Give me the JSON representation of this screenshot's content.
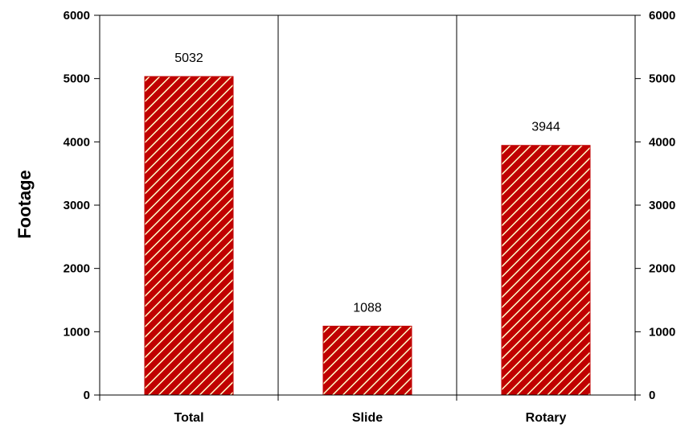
{
  "chart_data": {
    "type": "bar",
    "categories": [
      "Total",
      "Slide",
      "Rotary"
    ],
    "values": [
      5032,
      1088,
      3944
    ],
    "data_labels": [
      "5032",
      "1088",
      "3944"
    ],
    "ylabel": "Footage",
    "ylim": [
      0,
      6000
    ],
    "yticks": [
      "0",
      "1000",
      "2000",
      "3000",
      "4000",
      "5000",
      "6000"
    ],
    "secondary_yticks": [
      "0",
      "1000",
      "2000",
      "3000",
      "4000",
      "5000",
      "6000"
    ],
    "grid": "vertical category separators",
    "bar_color": "#c00000",
    "hatch_color": "#ffffcc",
    "legend": "none"
  }
}
